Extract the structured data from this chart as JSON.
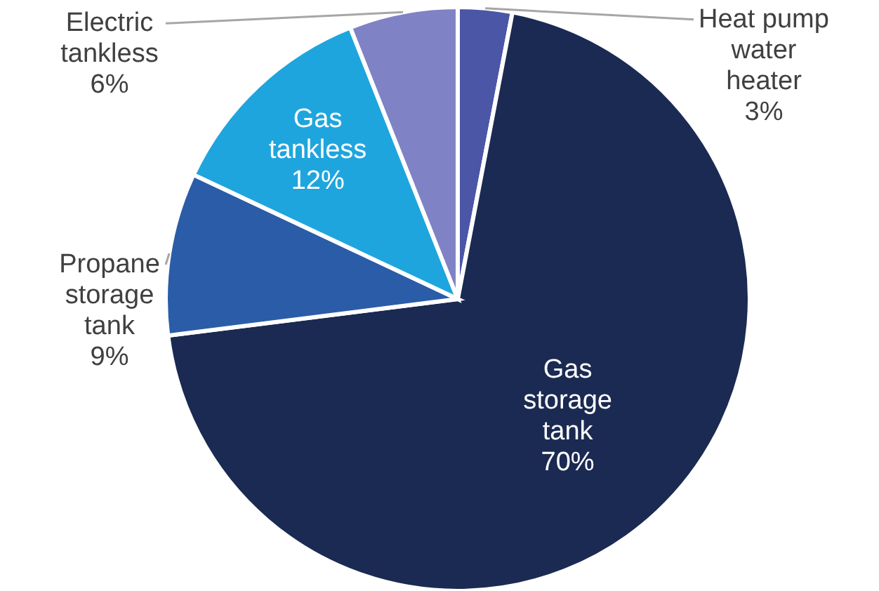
{
  "chart_data": {
    "type": "pie",
    "categories": [
      "Heat pump water heater",
      "Gas storage tank",
      "Propane storage tank",
      "Gas tankless",
      "Electric tankless"
    ],
    "values": [
      3,
      70,
      9,
      12,
      6
    ],
    "value_labels": [
      "3%",
      "70%",
      "9%",
      "12%",
      "6%"
    ],
    "colors": [
      "#4b56a6",
      "#1b2a52",
      "#2b5ca8",
      "#1fa5de",
      "#7f82c4"
    ]
  }
}
